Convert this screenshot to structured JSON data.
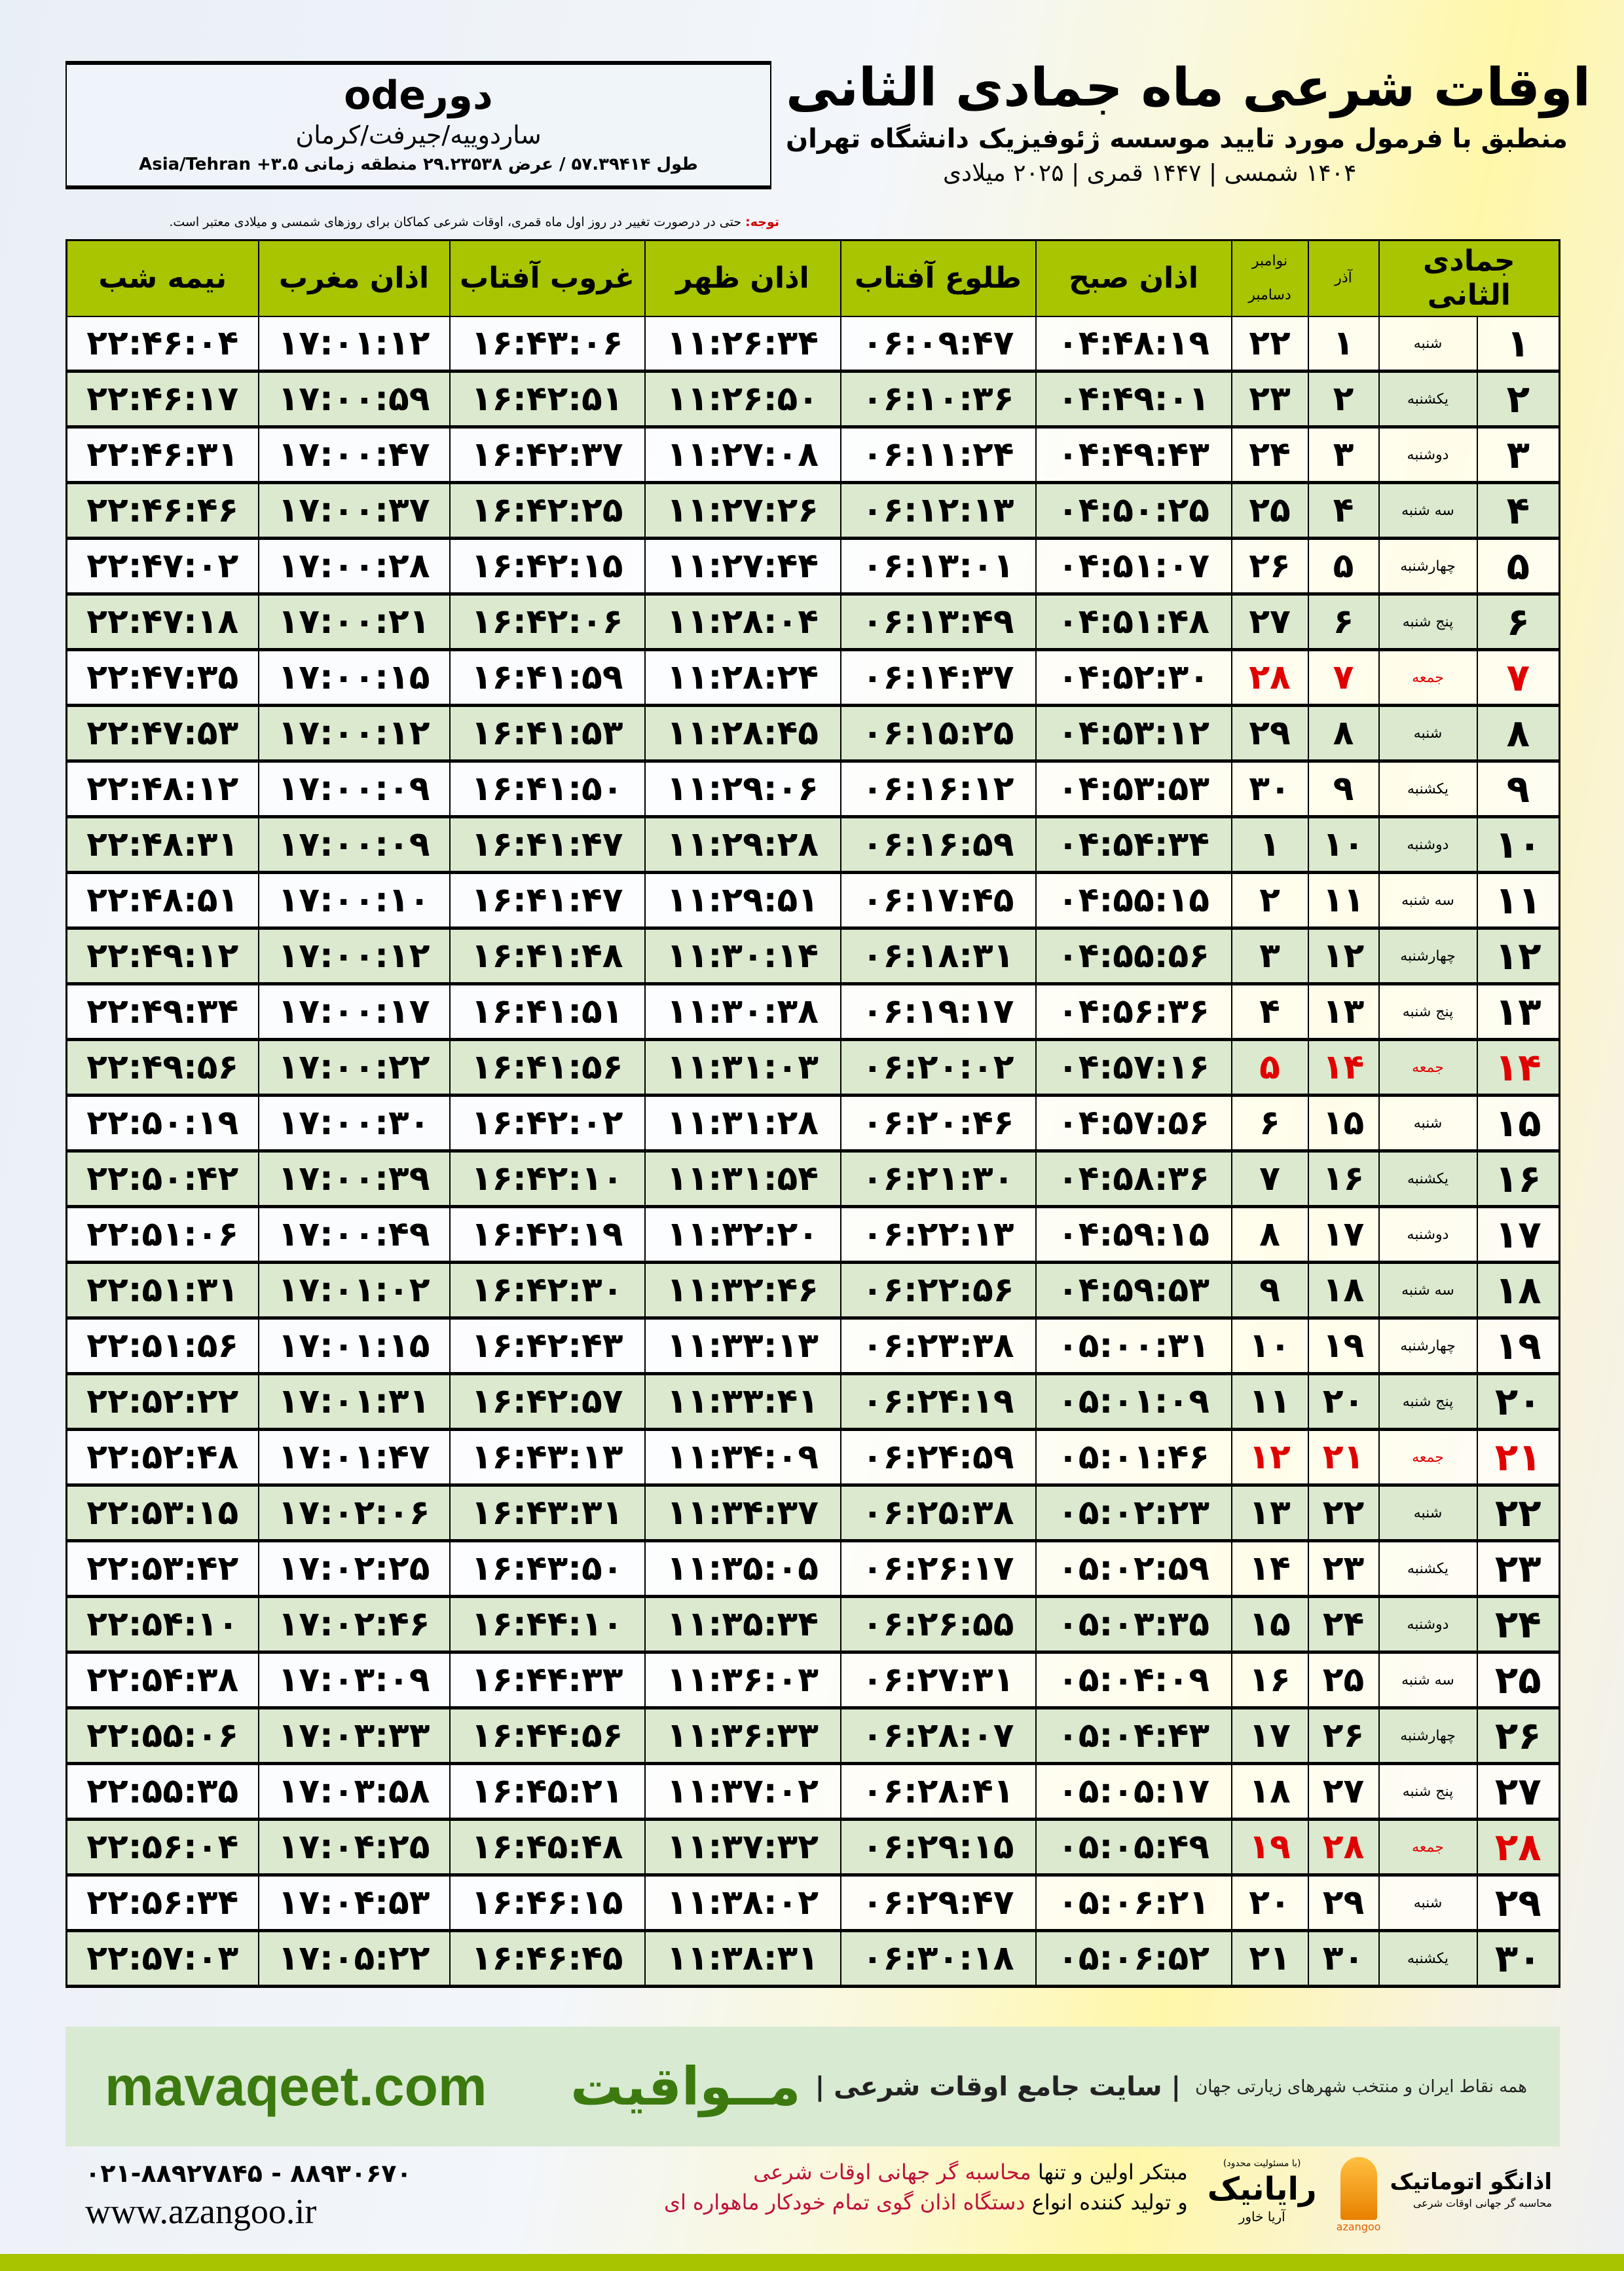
{
  "header": {
    "title": "اوقات شرعی ماه جمادی الثانی",
    "subtitle": "منطبق با فرمول مورد تایید موسسه ژئوفیزیک دانشگاه تهران",
    "years": "۱۴۰۴ شمسی | ۱۴۴۷ قمری | ۲۰۲۵ میلادی"
  },
  "location": {
    "name": "دورode",
    "region": "ساردوییه/جیرفت/کرمان",
    "coords": "طول ۵۷.۳۹۴۱۴ / عرض ۲۹.۲۳۵۳۸ منطقه زمانی ۳.۵+ Asia/Tehran"
  },
  "note": {
    "label": "توجه:",
    "text": " حتی در درصورت تغییر در روز اول ماه قمری، اوقات شرعی کماکان برای روزهای شمسی و میلادی معتبر است."
  },
  "table": {
    "headers": {
      "hijri": "جمادی الثانی",
      "azar": "آذر",
      "gregorian_top": "نوامبر",
      "gregorian_bottom": "دسامبر",
      "fajr": "اذان صبح",
      "sunrise": "طلوع آفتاب",
      "dhuhr": "اذان ظهر",
      "sunset": "غروب آفتاب",
      "maghrib": "اذان مغرب",
      "midnight": "نیمه شب"
    },
    "friday_color": "#e00000",
    "header_color": "#a9c400",
    "stripe_color": "#dbe9cf",
    "rows": [
      [
        "۱",
        "شنبه",
        "۱",
        "۲۲",
        "۰۴:۴۸:۱۹",
        "۰۶:۰۹:۴۷",
        "۱۱:۲۶:۳۴",
        "۱۶:۴۳:۰۶",
        "۱۷:۰۱:۱۲",
        "۲۲:۴۶:۰۴"
      ],
      [
        "۲",
        "یکشنبه",
        "۲",
        "۲۳",
        "۰۴:۴۹:۰۱",
        "۰۶:۱۰:۳۶",
        "۱۱:۲۶:۵۰",
        "۱۶:۴۲:۵۱",
        "۱۷:۰۰:۵۹",
        "۲۲:۴۶:۱۷"
      ],
      [
        "۳",
        "دوشنبه",
        "۳",
        "۲۴",
        "۰۴:۴۹:۴۳",
        "۰۶:۱۱:۲۴",
        "۱۱:۲۷:۰۸",
        "۱۶:۴۲:۳۷",
        "۱۷:۰۰:۴۷",
        "۲۲:۴۶:۳۱"
      ],
      [
        "۴",
        "سه شنبه",
        "۴",
        "۲۵",
        "۰۴:۵۰:۲۵",
        "۰۶:۱۲:۱۳",
        "۱۱:۲۷:۲۶",
        "۱۶:۴۲:۲۵",
        "۱۷:۰۰:۳۷",
        "۲۲:۴۶:۴۶"
      ],
      [
        "۵",
        "چهارشنبه",
        "۵",
        "۲۶",
        "۰۴:۵۱:۰۷",
        "۰۶:۱۳:۰۱",
        "۱۱:۲۷:۴۴",
        "۱۶:۴۲:۱۵",
        "۱۷:۰۰:۲۸",
        "۲۲:۴۷:۰۲"
      ],
      [
        "۶",
        "پنج شنبه",
        "۶",
        "۲۷",
        "۰۴:۵۱:۴۸",
        "۰۶:۱۳:۴۹",
        "۱۱:۲۸:۰۴",
        "۱۶:۴۲:۰۶",
        "۱۷:۰۰:۲۱",
        "۲۲:۴۷:۱۸"
      ],
      [
        "۷",
        "جمعه",
        "۷",
        "۲۸",
        "۰۴:۵۲:۳۰",
        "۰۶:۱۴:۳۷",
        "۱۱:۲۸:۲۴",
        "۱۶:۴۱:۵۹",
        "۱۷:۰۰:۱۵",
        "۲۲:۴۷:۳۵"
      ],
      [
        "۸",
        "شنبه",
        "۸",
        "۲۹",
        "۰۴:۵۳:۱۲",
        "۰۶:۱۵:۲۵",
        "۱۱:۲۸:۴۵",
        "۱۶:۴۱:۵۳",
        "۱۷:۰۰:۱۲",
        "۲۲:۴۷:۵۳"
      ],
      [
        "۹",
        "یکشنبه",
        "۹",
        "۳۰",
        "۰۴:۵۳:۵۳",
        "۰۶:۱۶:۱۲",
        "۱۱:۲۹:۰۶",
        "۱۶:۴۱:۵۰",
        "۱۷:۰۰:۰۹",
        "۲۲:۴۸:۱۲"
      ],
      [
        "۱۰",
        "دوشنبه",
        "۱۰",
        "۱",
        "۰۴:۵۴:۳۴",
        "۰۶:۱۶:۵۹",
        "۱۱:۲۹:۲۸",
        "۱۶:۴۱:۴۷",
        "۱۷:۰۰:۰۹",
        "۲۲:۴۸:۳۱"
      ],
      [
        "۱۱",
        "سه شنبه",
        "۱۱",
        "۲",
        "۰۴:۵۵:۱۵",
        "۰۶:۱۷:۴۵",
        "۱۱:۲۹:۵۱",
        "۱۶:۴۱:۴۷",
        "۱۷:۰۰:۱۰",
        "۲۲:۴۸:۵۱"
      ],
      [
        "۱۲",
        "چهارشنبه",
        "۱۲",
        "۳",
        "۰۴:۵۵:۵۶",
        "۰۶:۱۸:۳۱",
        "۱۱:۳۰:۱۴",
        "۱۶:۴۱:۴۸",
        "۱۷:۰۰:۱۲",
        "۲۲:۴۹:۱۲"
      ],
      [
        "۱۳",
        "پنج شنبه",
        "۱۳",
        "۴",
        "۰۴:۵۶:۳۶",
        "۰۶:۱۹:۱۷",
        "۱۱:۳۰:۳۸",
        "۱۶:۴۱:۵۱",
        "۱۷:۰۰:۱۷",
        "۲۲:۴۹:۳۴"
      ],
      [
        "۱۴",
        "جمعه",
        "۱۴",
        "۵",
        "۰۴:۵۷:۱۶",
        "۰۶:۲۰:۰۲",
        "۱۱:۳۱:۰۳",
        "۱۶:۴۱:۵۶",
        "۱۷:۰۰:۲۲",
        "۲۲:۴۹:۵۶"
      ],
      [
        "۱۵",
        "شنبه",
        "۱۵",
        "۶",
        "۰۴:۵۷:۵۶",
        "۰۶:۲۰:۴۶",
        "۱۱:۳۱:۲۸",
        "۱۶:۴۲:۰۲",
        "۱۷:۰۰:۳۰",
        "۲۲:۵۰:۱۹"
      ],
      [
        "۱۶",
        "یکشنبه",
        "۱۶",
        "۷",
        "۰۴:۵۸:۳۶",
        "۰۶:۲۱:۳۰",
        "۱۱:۳۱:۵۴",
        "۱۶:۴۲:۱۰",
        "۱۷:۰۰:۳۹",
        "۲۲:۵۰:۴۲"
      ],
      [
        "۱۷",
        "دوشنبه",
        "۱۷",
        "۸",
        "۰۴:۵۹:۱۵",
        "۰۶:۲۲:۱۳",
        "۱۱:۳۲:۲۰",
        "۱۶:۴۲:۱۹",
        "۱۷:۰۰:۴۹",
        "۲۲:۵۱:۰۶"
      ],
      [
        "۱۸",
        "سه شنبه",
        "۱۸",
        "۹",
        "۰۴:۵۹:۵۳",
        "۰۶:۲۲:۵۶",
        "۱۱:۳۲:۴۶",
        "۱۶:۴۲:۳۰",
        "۱۷:۰۱:۰۲",
        "۲۲:۵۱:۳۱"
      ],
      [
        "۱۹",
        "چهارشنبه",
        "۱۹",
        "۱۰",
        "۰۵:۰۰:۳۱",
        "۰۶:۲۳:۳۸",
        "۱۱:۳۳:۱۳",
        "۱۶:۴۲:۴۳",
        "۱۷:۰۱:۱۵",
        "۲۲:۵۱:۵۶"
      ],
      [
        "۲۰",
        "پنج شنبه",
        "۲۰",
        "۱۱",
        "۰۵:۰۱:۰۹",
        "۰۶:۲۴:۱۹",
        "۱۱:۳۳:۴۱",
        "۱۶:۴۲:۵۷",
        "۱۷:۰۱:۳۱",
        "۲۲:۵۲:۲۲"
      ],
      [
        "۲۱",
        "جمعه",
        "۲۱",
        "۱۲",
        "۰۵:۰۱:۴۶",
        "۰۶:۲۴:۵۹",
        "۱۱:۳۴:۰۹",
        "۱۶:۴۳:۱۳",
        "۱۷:۰۱:۴۷",
        "۲۲:۵۲:۴۸"
      ],
      [
        "۲۲",
        "شنبه",
        "۲۲",
        "۱۳",
        "۰۵:۰۲:۲۳",
        "۰۶:۲۵:۳۸",
        "۱۱:۳۴:۳۷",
        "۱۶:۴۳:۳۱",
        "۱۷:۰۲:۰۶",
        "۲۲:۵۳:۱۵"
      ],
      [
        "۲۳",
        "یکشنبه",
        "۲۳",
        "۱۴",
        "۰۵:۰۲:۵۹",
        "۰۶:۲۶:۱۷",
        "۱۱:۳۵:۰۵",
        "۱۶:۴۳:۵۰",
        "۱۷:۰۲:۲۵",
        "۲۲:۵۳:۴۲"
      ],
      [
        "۲۴",
        "دوشنبه",
        "۲۴",
        "۱۵",
        "۰۵:۰۳:۳۵",
        "۰۶:۲۶:۵۵",
        "۱۱:۳۵:۳۴",
        "۱۶:۴۴:۱۰",
        "۱۷:۰۲:۴۶",
        "۲۲:۵۴:۱۰"
      ],
      [
        "۲۵",
        "سه شنبه",
        "۲۵",
        "۱۶",
        "۰۵:۰۴:۰۹",
        "۰۶:۲۷:۳۱",
        "۱۱:۳۶:۰۳",
        "۱۶:۴۴:۳۳",
        "۱۷:۰۳:۰۹",
        "۲۲:۵۴:۳۸"
      ],
      [
        "۲۶",
        "چهارشنبه",
        "۲۶",
        "۱۷",
        "۰۵:۰۴:۴۳",
        "۰۶:۲۸:۰۷",
        "۱۱:۳۶:۳۳",
        "۱۶:۴۴:۵۶",
        "۱۷:۰۳:۳۳",
        "۲۲:۵۵:۰۶"
      ],
      [
        "۲۷",
        "پنج شنبه",
        "۲۷",
        "۱۸",
        "۰۵:۰۵:۱۷",
        "۰۶:۲۸:۴۱",
        "۱۱:۳۷:۰۲",
        "۱۶:۴۵:۲۱",
        "۱۷:۰۳:۵۸",
        "۲۲:۵۵:۳۵"
      ],
      [
        "۲۸",
        "جمعه",
        "۲۸",
        "۱۹",
        "۰۵:۰۵:۴۹",
        "۰۶:۲۹:۱۵",
        "۱۱:۳۷:۳۲",
        "۱۶:۴۵:۴۸",
        "۱۷:۰۴:۲۵",
        "۲۲:۵۶:۰۴"
      ],
      [
        "۲۹",
        "شنبه",
        "۲۹",
        "۲۰",
        "۰۵:۰۶:۲۱",
        "۰۶:۲۹:۴۷",
        "۱۱:۳۸:۰۲",
        "۱۶:۴۶:۱۵",
        "۱۷:۰۴:۵۳",
        "۲۲:۵۶:۳۴"
      ],
      [
        "۳۰",
        "یکشنبه",
        "۳۰",
        "۲۱",
        "۰۵:۰۶:۵۲",
        "۰۶:۳۰:۱۸",
        "۱۱:۳۸:۳۱",
        "۱۶:۴۶:۴۵",
        "۱۷:۰۵:۲۲",
        "۲۲:۵۷:۰۳"
      ]
    ]
  },
  "banner": {
    "brand": "مــواقیت",
    "slogan": "| سایت جامع اوقات شرعی |",
    "slogan2": "همه نقاط ایران و منتخب شهرهای زیارتی جهان",
    "site": "mavaqeet.com"
  },
  "footer": {
    "phone": "۰۲۱-۸۸۹۲۷۸۴۵ - ۸۸۹۳۰۶۷۰",
    "web": "www.azangoo.ir",
    "pitch_line1_a": "مبتکر اولین و تنها ",
    "pitch_line1_b": "محاسبه گر جهانی اوقات شرعی",
    "pitch_line2_a": "و تولید کننده انواع ",
    "pitch_line2_b": "دستگاه اذان گوی تمام خودکار ماهواره ای",
    "rayanik_small": "(با مسئولیت محدود)",
    "rayanik": "رایانیک",
    "rayanik_side": "آریا خاور",
    "azangoo_fa": "اذانگو اتوماتیک",
    "azangoo_sub": "محاسبه گر جهانی اوقات شرعی",
    "azangoo_en": "azangoo"
  }
}
